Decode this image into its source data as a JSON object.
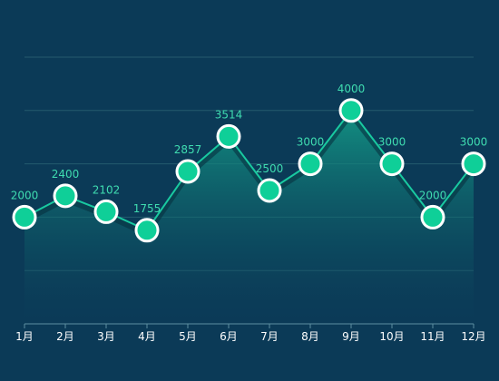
{
  "chart_data": {
    "type": "area",
    "categories": [
      "1月",
      "2月",
      "3月",
      "4月",
      "5月",
      "6月",
      "7月",
      "8月",
      "9月",
      "10月",
      "11月",
      "12月"
    ],
    "values": [
      2000,
      2400,
      2102,
      1755,
      2857,
      3514,
      2500,
      3000,
      4000,
      3000,
      2000,
      3000
    ],
    "value_labels": [
      "2000",
      "2400",
      "2102",
      "1755",
      "2857",
      "3514",
      "2500",
      "3000",
      "4000",
      "3000",
      "2000",
      "3000"
    ],
    "ylim": [
      0,
      5000
    ],
    "grid": true,
    "legend": "none"
  },
  "colors": {
    "background": "#0b3a57",
    "line": "#19c9a0",
    "marker_fill": "#0fcf98",
    "marker_stroke": "#ffffff",
    "value_label": "#3fdcb0",
    "tick_label": "#ffffff",
    "gridline": "#2f6a78",
    "axis": "#5c8fa0"
  }
}
